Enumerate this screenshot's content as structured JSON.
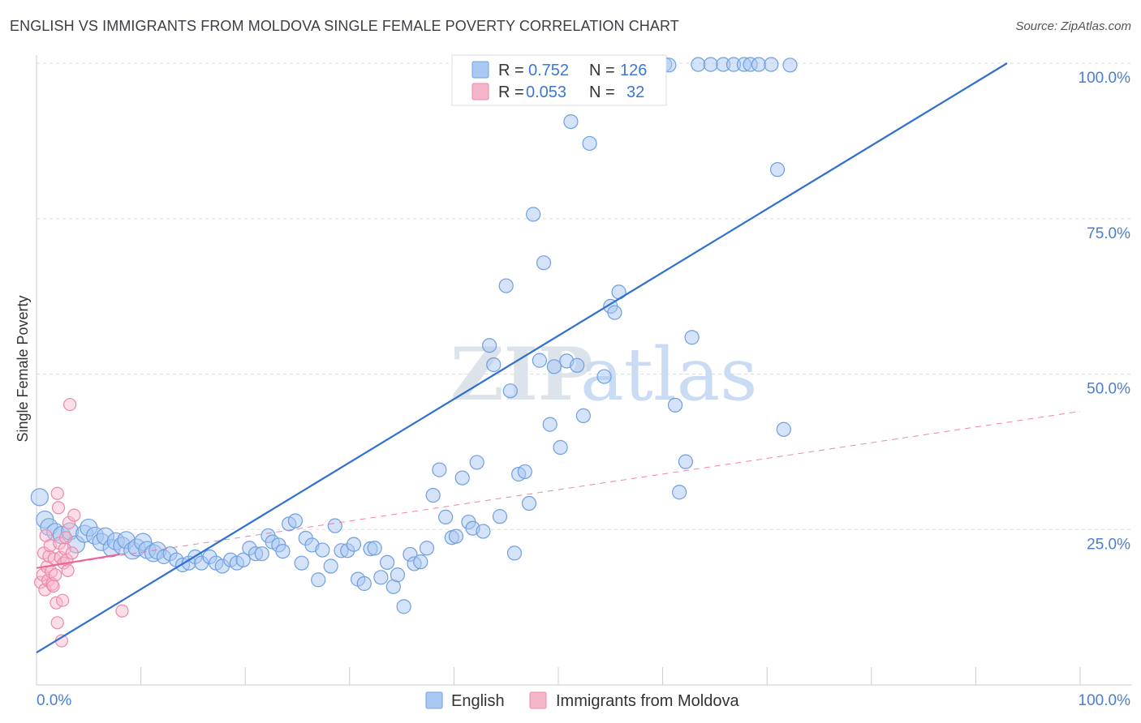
{
  "title": "ENGLISH VS IMMIGRANTS FROM MOLDOVA SINGLE FEMALE POVERTY CORRELATION CHART",
  "source": "Source: ZipAtlas.com",
  "watermark": {
    "zip": "ZIP",
    "atlas": "atlas"
  },
  "colors": {
    "english_fill": "#a9c8f2",
    "english_stroke": "#6f9fe0",
    "english_line": "#2f6fcf",
    "moldova_fill": "#f6b6c9",
    "moldova_stroke": "#ef88a8",
    "moldova_line": "#e8679a",
    "grid": "#d9dde3",
    "tick_label": "#4a7fd0"
  },
  "stats_legend": {
    "rows": [
      {
        "r_label": "R = ",
        "r_value": "0.752",
        "n_label": "N = ",
        "n_value": "126"
      },
      {
        "r_label": "R = ",
        "r_value": "0.053",
        "n_label": "N = ",
        "n_value": "32"
      }
    ]
  },
  "chart_data": {
    "type": "scatter",
    "title": "ENGLISH VS IMMIGRANTS FROM MOLDOVA SINGLE FEMALE POVERTY CORRELATION CHART",
    "xlabel": "",
    "ylabel": "Single Female Poverty",
    "xlim": [
      0,
      100
    ],
    "ylim": [
      0,
      100
    ],
    "x_tick_labels": [
      "0.0%",
      "100.0%"
    ],
    "y_tick_labels": [
      "25.0%",
      "50.0%",
      "75.0%",
      "100.0%"
    ],
    "y_ticks": [
      25,
      50,
      75,
      100
    ],
    "grid": true,
    "legend_position": "bottom-center",
    "series": [
      {
        "name": "English",
        "R": 0.752,
        "N": 126,
        "trend": {
          "x": [
            0,
            93
          ],
          "y": [
            5.2,
            100
          ]
        },
        "points": [
          [
            0.3,
            30.2
          ],
          [
            0.8,
            26.6
          ],
          [
            1.2,
            25.4
          ],
          [
            1.8,
            24.6
          ],
          [
            2.4,
            24.1
          ],
          [
            3.2,
            24.7
          ],
          [
            3.8,
            22.6
          ],
          [
            4.6,
            24.3
          ],
          [
            5.0,
            25.3
          ],
          [
            5.6,
            24.0
          ],
          [
            6.2,
            23.0
          ],
          [
            6.6,
            23.9
          ],
          [
            7.2,
            22.0
          ],
          [
            7.6,
            23.1
          ],
          [
            8.2,
            22.4
          ],
          [
            8.6,
            23.3
          ],
          [
            9.2,
            21.6
          ],
          [
            9.6,
            22.1
          ],
          [
            10.2,
            23.0
          ],
          [
            10.6,
            21.7
          ],
          [
            11.2,
            21.2
          ],
          [
            11.6,
            21.6
          ],
          [
            12.2,
            20.6
          ],
          [
            12.8,
            21.1
          ],
          [
            13.4,
            20.1
          ],
          [
            14.0,
            19.3
          ],
          [
            14.6,
            19.6
          ],
          [
            15.2,
            20.6
          ],
          [
            15.8,
            19.6
          ],
          [
            16.6,
            20.6
          ],
          [
            17.2,
            19.6
          ],
          [
            17.8,
            19.1
          ],
          [
            18.6,
            20.1
          ],
          [
            19.2,
            19.6
          ],
          [
            19.8,
            20.1
          ],
          [
            20.4,
            22.0
          ],
          [
            21.0,
            21.1
          ],
          [
            21.6,
            21.1
          ],
          [
            22.2,
            24.0
          ],
          [
            22.6,
            23.0
          ],
          [
            23.2,
            22.5
          ],
          [
            23.6,
            21.5
          ],
          [
            24.2,
            25.9
          ],
          [
            24.8,
            26.4
          ],
          [
            25.4,
            19.6
          ],
          [
            25.8,
            23.6
          ],
          [
            26.4,
            22.5
          ],
          [
            27.0,
            16.9
          ],
          [
            27.4,
            21.7
          ],
          [
            28.2,
            19.1
          ],
          [
            28.6,
            25.6
          ],
          [
            29.2,
            21.6
          ],
          [
            29.8,
            21.6
          ],
          [
            30.4,
            22.6
          ],
          [
            30.8,
            17.0
          ],
          [
            31.4,
            16.3
          ],
          [
            32.0,
            21.9
          ],
          [
            32.4,
            22.0
          ],
          [
            33.0,
            17.3
          ],
          [
            33.6,
            19.7
          ],
          [
            34.2,
            15.8
          ],
          [
            34.6,
            17.7
          ],
          [
            35.2,
            12.6
          ],
          [
            35.8,
            21.0
          ],
          [
            36.2,
            19.5
          ],
          [
            36.8,
            19.8
          ],
          [
            37.4,
            22.0
          ],
          [
            38.0,
            30.5
          ],
          [
            38.6,
            34.6
          ],
          [
            39.2,
            27.0
          ],
          [
            39.8,
            23.7
          ],
          [
            40.2,
            23.9
          ],
          [
            40.8,
            33.3
          ],
          [
            41.4,
            26.2
          ],
          [
            41.8,
            25.2
          ],
          [
            42.2,
            35.8
          ],
          [
            42.8,
            24.7
          ],
          [
            43.4,
            54.6
          ],
          [
            43.8,
            51.5
          ],
          [
            44.4,
            27.1
          ],
          [
            45.0,
            64.2
          ],
          [
            45.4,
            47.3
          ],
          [
            45.8,
            21.2
          ],
          [
            46.2,
            33.9
          ],
          [
            46.8,
            34.3
          ],
          [
            47.2,
            29.2
          ],
          [
            47.6,
            75.7
          ],
          [
            48.2,
            52.2
          ],
          [
            48.6,
            67.9
          ],
          [
            49.2,
            41.9
          ],
          [
            49.6,
            51.2
          ],
          [
            50.2,
            38.2
          ],
          [
            50.8,
            52.1
          ],
          [
            51.2,
            90.6
          ],
          [
            51.8,
            51.4
          ],
          [
            52.4,
            43.3
          ],
          [
            53.0,
            87.1
          ],
          [
            53.8,
            99.7
          ],
          [
            54.4,
            49.6
          ],
          [
            55.0,
            60.9
          ],
          [
            55.4,
            59.9
          ],
          [
            55.8,
            63.2
          ],
          [
            56.2,
            99.8
          ],
          [
            56.8,
            99.8
          ],
          [
            57.4,
            99.8
          ],
          [
            58.0,
            99.8
          ],
          [
            58.6,
            99.8
          ],
          [
            59.0,
            99.8
          ],
          [
            59.6,
            99.8
          ],
          [
            60.2,
            99.8
          ],
          [
            60.6,
            99.7
          ],
          [
            61.2,
            45.0
          ],
          [
            61.6,
            31.0
          ],
          [
            62.2,
            35.9
          ],
          [
            62.8,
            55.9
          ],
          [
            63.4,
            99.8
          ],
          [
            64.6,
            99.8
          ],
          [
            65.8,
            99.8
          ],
          [
            66.8,
            99.8
          ],
          [
            67.8,
            99.8
          ],
          [
            68.4,
            99.8
          ],
          [
            69.2,
            99.8
          ],
          [
            70.4,
            99.8
          ],
          [
            71.0,
            82.9
          ],
          [
            71.6,
            41.1
          ],
          [
            72.2,
            99.7
          ]
        ]
      },
      {
        "name": "Immigrants from Moldova",
        "R": 0.053,
        "N": 32,
        "trend": {
          "x": [
            0,
            8
          ],
          "y": [
            18.8,
            21.0
          ]
        },
        "dashed_trend": {
          "x": [
            0,
            100
          ],
          "y": [
            18.8,
            44.0
          ]
        },
        "points": [
          [
            0.4,
            16.5
          ],
          [
            0.6,
            17.7
          ],
          [
            0.7,
            21.2
          ],
          [
            0.8,
            15.3
          ],
          [
            0.9,
            24.0
          ],
          [
            1.0,
            19.0
          ],
          [
            1.1,
            16.8
          ],
          [
            1.2,
            20.7
          ],
          [
            1.3,
            22.4
          ],
          [
            1.4,
            18.2
          ],
          [
            1.5,
            16.2
          ],
          [
            1.6,
            15.9
          ],
          [
            1.7,
            20.3
          ],
          [
            1.8,
            17.7
          ],
          [
            1.9,
            13.2
          ],
          [
            2.0,
            30.8
          ],
          [
            2.0,
            10.0
          ],
          [
            2.1,
            28.5
          ],
          [
            2.2,
            22.8
          ],
          [
            2.3,
            20.5
          ],
          [
            2.4,
            7.1
          ],
          [
            2.5,
            13.6
          ],
          [
            2.6,
            19.6
          ],
          [
            2.7,
            21.9
          ],
          [
            2.8,
            23.7
          ],
          [
            2.9,
            20.1
          ],
          [
            3.0,
            18.4
          ],
          [
            3.1,
            26.1
          ],
          [
            3.2,
            45.1
          ],
          [
            3.4,
            21.2
          ],
          [
            3.6,
            27.3
          ],
          [
            8.2,
            11.9
          ]
        ]
      }
    ]
  }
}
